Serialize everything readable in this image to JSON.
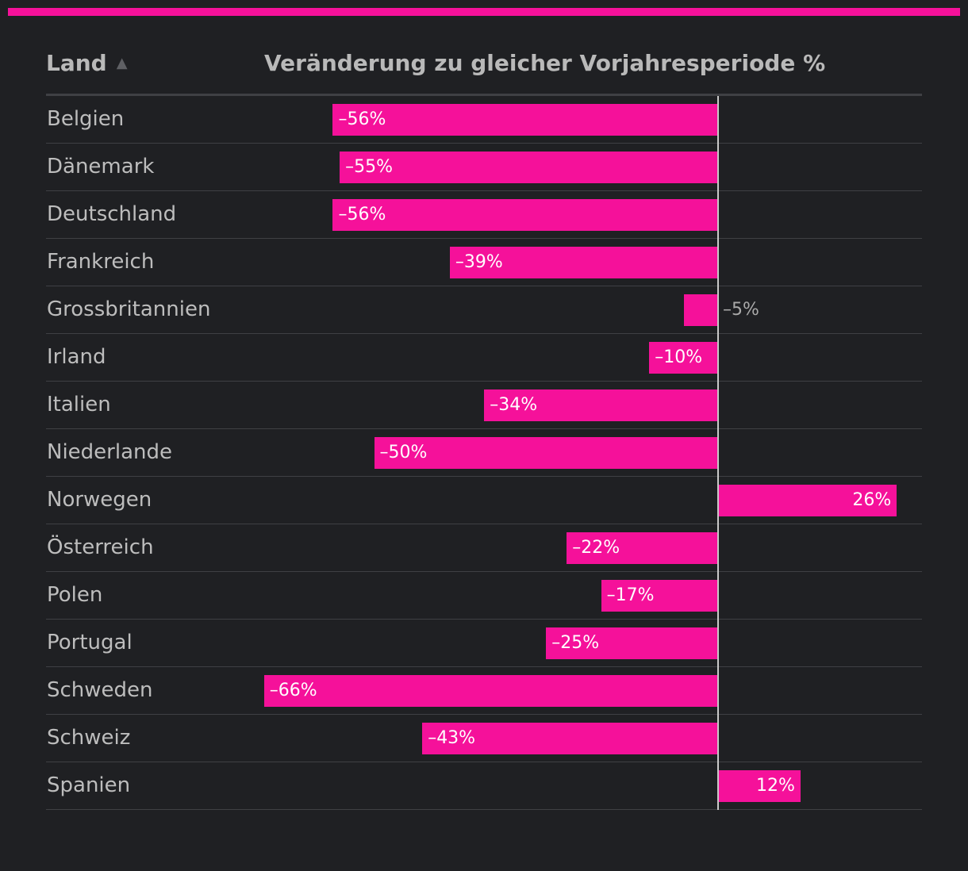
{
  "colors": {
    "accent": "#f5119a",
    "background": "#1f2023",
    "zero_line": "#c9c9c9"
  },
  "header": {
    "land_label": "Land",
    "sort_icon": "▲",
    "change_label": "Veränderung zu gleicher Vorjahresperiode %"
  },
  "chart_data": {
    "type": "bar",
    "orientation": "horizontal",
    "title": "",
    "xlabel": "Veränderung zu gleicher Vorjahresperiode %",
    "ylabel": "Land",
    "categories": [
      "Belgien",
      "Dänemark",
      "Deutschland",
      "Frankreich",
      "Grossbritannien",
      "Irland",
      "Italien",
      "Niederlande",
      "Norwegen",
      "Österreich",
      "Polen",
      "Portugal",
      "Schweden",
      "Schweiz",
      "Spanien"
    ],
    "values": [
      -56,
      -55,
      -56,
      -39,
      -5,
      -10,
      -34,
      -50,
      26,
      -22,
      -17,
      -25,
      -66,
      -43,
      12
    ],
    "labels": [
      "–56%",
      "–55%",
      "–56%",
      "–39%",
      "–5%",
      "–10%",
      "–34%",
      "–50%",
      "26%",
      "–22%",
      "–17%",
      "–25%",
      "–66%",
      "–43%",
      "12%"
    ],
    "xlim": [
      -66,
      30
    ],
    "grid": false,
    "legend": "none"
  }
}
